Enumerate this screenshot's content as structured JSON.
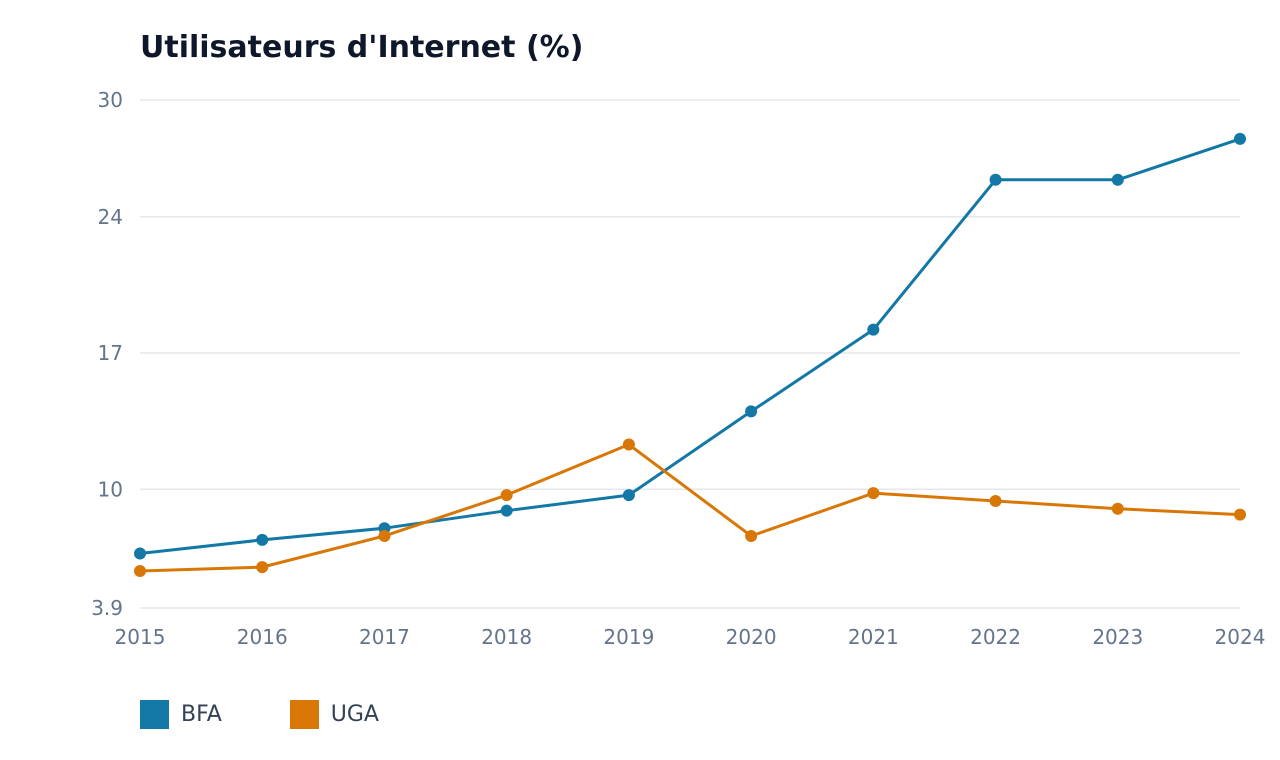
{
  "chart_data": {
    "type": "line",
    "title": "Utilisateurs d'Internet (%)",
    "xlabel": "",
    "ylabel": "",
    "x": [
      2015,
      2016,
      2017,
      2018,
      2019,
      2020,
      2021,
      2022,
      2023,
      2024
    ],
    "categories": [
      "2015",
      "2016",
      "2017",
      "2018",
      "2019",
      "2020",
      "2021",
      "2022",
      "2023",
      "2024"
    ],
    "yticks": [
      "3.9",
      "10",
      "17",
      "24",
      "30"
    ],
    "ylim": [
      3.9,
      30
    ],
    "grid": true,
    "legend_position": "bottom-left",
    "series": [
      {
        "name": "BFA",
        "color": "#1478a6",
        "values": [
          6.7,
          7.4,
          8.0,
          8.9,
          9.7,
          14.0,
          18.2,
          25.9,
          25.9,
          28.0
        ]
      },
      {
        "name": "UGA",
        "color": "#d97706",
        "values": [
          5.8,
          6.0,
          7.6,
          9.7,
          12.3,
          7.6,
          9.8,
          9.4,
          9.0,
          8.7
        ]
      }
    ]
  }
}
